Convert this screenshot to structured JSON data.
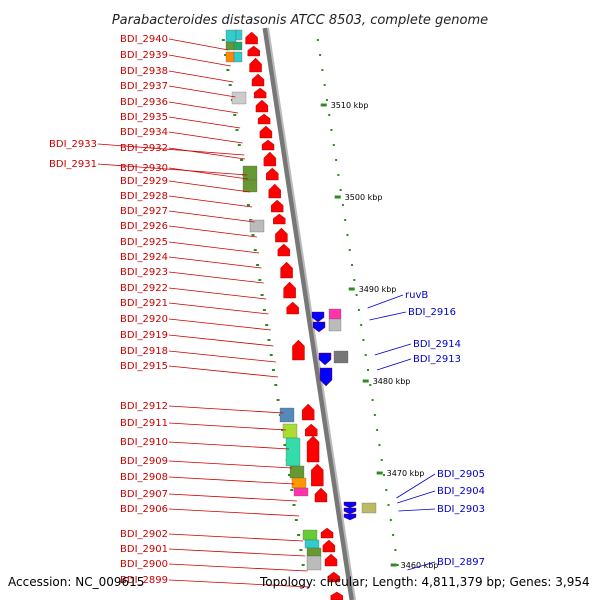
{
  "title": "Parabacteroides distasonis ATCC 8503, complete genome",
  "accession": "Accession: NC_009615",
  "topology": "Topology: circular; Length: 4,811,379 bp; Genes: 3,954",
  "kbp_marks": [
    "3510 kbp",
    "3500 kbp",
    "3490 kbp",
    "3480 kbp",
    "3470 kbp",
    "3460 kbp"
  ],
  "left_labels": [
    "BDI_2940",
    "BDI_2939",
    "BDI_2938",
    "BDI_2937",
    "BDI_2936",
    "BDI_2935",
    "BDI_2934",
    "BDI_2933",
    "BDI_2932",
    "BDI_2931",
    "BDI_2930",
    "BDI_2929",
    "BDI_2928",
    "BDI_2927",
    "BDI_2926",
    "BDI_2925",
    "BDI_2924",
    "BDI_2923",
    "BDI_2922",
    "BDI_2921",
    "BDI_2920",
    "BDI_2919",
    "BDI_2918",
    "BDI_2915",
    "BDI_2912",
    "BDI_2911",
    "BDI_2910",
    "BDI_2909",
    "BDI_2908",
    "BDI_2907",
    "BDI_2906",
    "BDI_2902",
    "BDI_2901",
    "BDI_2900",
    "BDI_2899"
  ],
  "right_labels": [
    "ruvB",
    "BDI_2916",
    "BDI_2914",
    "BDI_2913",
    "BDI_2905",
    "BDI_2904",
    "BDI_2903",
    "BDI_2897"
  ],
  "colors": {
    "forward": "#ff0000",
    "reverse": "#0000ff",
    "left_text": "#cc0000",
    "right_text": "#0000cc",
    "backbone": "#888888",
    "tick": "#2e8b1f"
  }
}
